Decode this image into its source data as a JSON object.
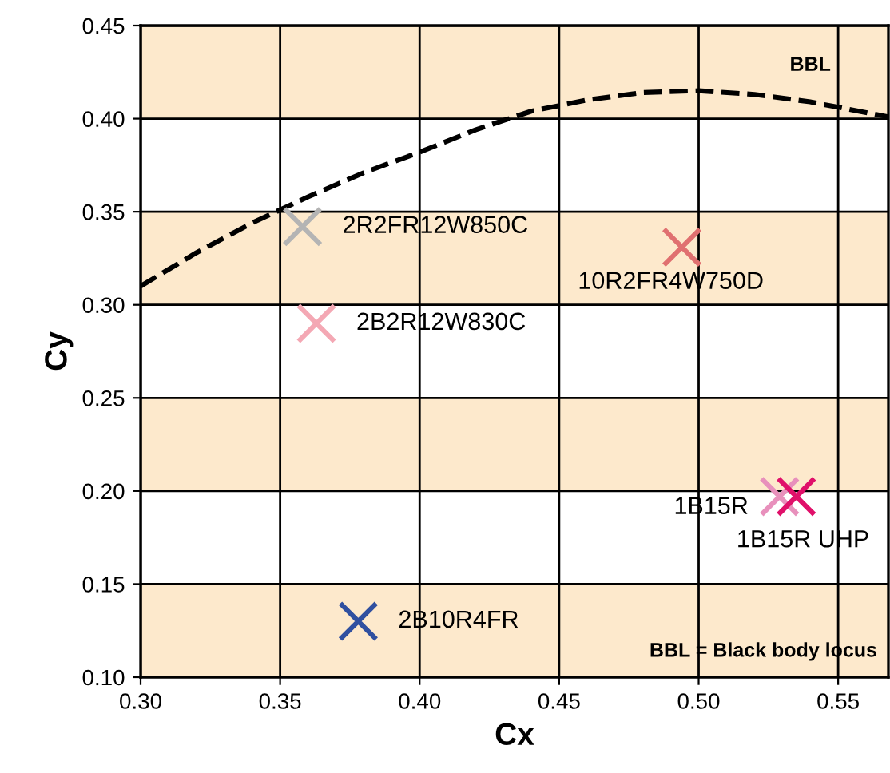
{
  "chart_data": {
    "type": "scatter",
    "xlabel": "Cx",
    "ylabel": "Cy",
    "xlim": [
      0.3,
      0.568
    ],
    "ylim": [
      0.1,
      0.45
    ],
    "xticks": [
      {
        "value": 0.3,
        "label": "0.30"
      },
      {
        "value": 0.35,
        "label": "0.35"
      },
      {
        "value": 0.4,
        "label": "0.40"
      },
      {
        "value": 0.45,
        "label": "0.45"
      },
      {
        "value": 0.5,
        "label": "0.50"
      },
      {
        "value": 0.55,
        "label": "0.55"
      }
    ],
    "yticks": [
      {
        "value": 0.1,
        "label": "0.10"
      },
      {
        "value": 0.15,
        "label": "0.15"
      },
      {
        "value": 0.2,
        "label": "0.20"
      },
      {
        "value": 0.25,
        "label": "0.25"
      },
      {
        "value": 0.3,
        "label": "0.30"
      },
      {
        "value": 0.35,
        "label": "0.35"
      },
      {
        "value": 0.4,
        "label": "0.40"
      },
      {
        "value": 0.45,
        "label": "0.45"
      }
    ],
    "grid": true,
    "marker": "cross",
    "legend": false,
    "bands": [
      {
        "axis": "y",
        "from": 0.1,
        "to": 0.15,
        "color": "#fde9cc"
      },
      {
        "axis": "y",
        "from": 0.2,
        "to": 0.25,
        "color": "#fde9cc"
      },
      {
        "axis": "y",
        "from": 0.3,
        "to": 0.35,
        "color": "#fde9cc"
      },
      {
        "axis": "y",
        "from": 0.4,
        "to": 0.45,
        "color": "#fde9cc"
      }
    ],
    "series": [
      {
        "name": "BBL",
        "type": "line",
        "marker": "none",
        "line_style": "dashed",
        "color": "#000000",
        "x": [
          0.3,
          0.32,
          0.34,
          0.36,
          0.38,
          0.4,
          0.42,
          0.44,
          0.46,
          0.48,
          0.5,
          0.52,
          0.54,
          0.568
        ],
        "values": [
          0.31,
          0.328,
          0.344,
          0.358,
          0.371,
          0.382,
          0.394,
          0.404,
          0.41,
          0.414,
          0.415,
          0.413,
          0.409,
          0.401
        ]
      },
      {
        "name": "2R2FR12W850C",
        "color": "#b4b4b4",
        "x": [
          0.358
        ],
        "values": [
          0.342
        ]
      },
      {
        "name": "2B2R12W830C",
        "color": "#f4a8b4",
        "x": [
          0.363
        ],
        "values": [
          0.29
        ]
      },
      {
        "name": "10R2FR4W750D",
        "color": "#e07070",
        "x": [
          0.494
        ],
        "values": [
          0.331
        ]
      },
      {
        "name": "1B15R",
        "color": "#e890bc",
        "x": [
          0.529
        ],
        "values": [
          0.197
        ]
      },
      {
        "name": "1B15R UHP",
        "color": "#e0106a",
        "x": [
          0.535
        ],
        "values": [
          0.197
        ]
      },
      {
        "name": "2B10R4FR",
        "color": "#3050a0",
        "x": [
          0.378
        ],
        "values": [
          0.13
        ]
      }
    ],
    "annotations": [
      "BBL = Black body locus"
    ]
  }
}
